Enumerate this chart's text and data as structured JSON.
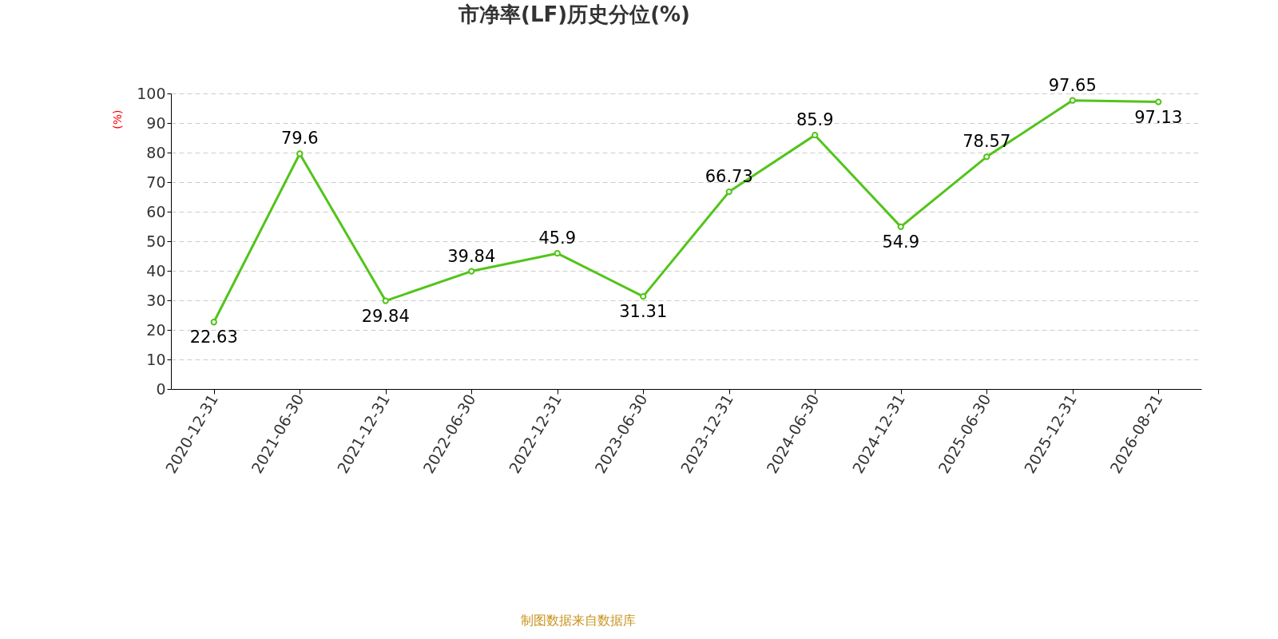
{
  "chart_data": {
    "type": "line",
    "title": "市净率(LF)历史分位(%)",
    "ylabel": "(%)",
    "categories": [
      "2020-12-31",
      "2021-06-30",
      "2021-12-31",
      "2022-06-30",
      "2022-12-31",
      "2023-06-30",
      "2023-12-31",
      "2024-06-30",
      "2024-12-31",
      "2025-06-30",
      "2025-12-31",
      "2026-08-21"
    ],
    "series": [
      {
        "color": "#52c41a",
        "values": [
          22.63,
          79.6,
          29.84,
          39.84,
          45.9,
          31.31,
          66.73,
          85.9,
          54.9,
          78.57,
          97.65,
          97.13
        ]
      }
    ],
    "ylim": [
      0,
      100
    ],
    "yticks": [
      0,
      10,
      20,
      30,
      40,
      50,
      60,
      70,
      80,
      90,
      100
    ],
    "grid": "y",
    "marker": "circle",
    "line_style": "solid",
    "data_labels": true,
    "legend": false,
    "annotations": [
      "制图数据来自数据库"
    ]
  }
}
